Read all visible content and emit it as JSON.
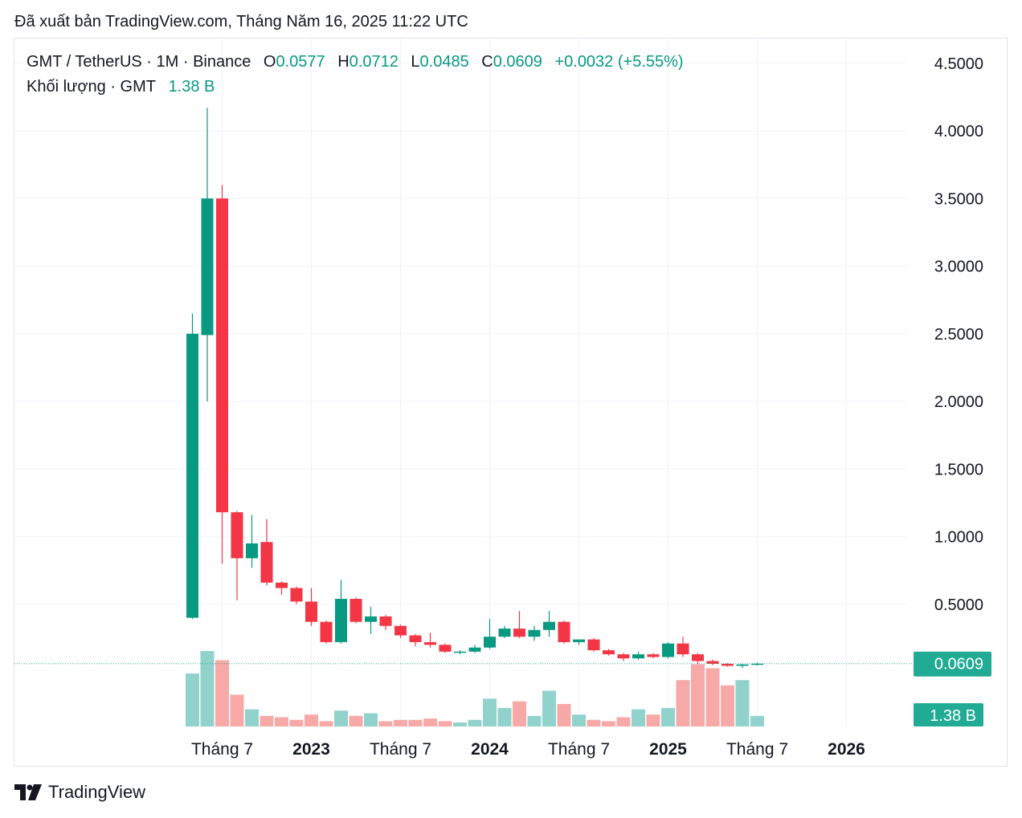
{
  "published_text": "Đã xuất bản TradingView.com, Tháng Năm 16, 2025 11:22 UTC",
  "legend": {
    "symbol": "GMT / TetherUS · 1M · Binance",
    "o_label": "O",
    "o_value": "0.0577",
    "h_label": "H",
    "h_value": "0.0712",
    "l_label": "L",
    "l_value": "0.0485",
    "c_label": "C",
    "c_value": "0.0609",
    "change": "+0.0032 (+5.55%)",
    "volume_label": "Khối lượng · GMT",
    "volume_value": "1.38 B"
  },
  "brand": {
    "name": "TradingView",
    "logo_icon": "tradingview-logo-icon"
  },
  "colors": {
    "up": "#089981",
    "down": "#f23645",
    "up_volume": "#92d2cc",
    "down_volume": "#f7a9a7",
    "last_price_label": "#22ab94",
    "grid": "#f0f3fa",
    "text": "#131722"
  },
  "chart_data": {
    "type": "candlestick",
    "interval": "1M",
    "y_axis": {
      "min": 0,
      "max": 4.5,
      "ticks": [
        "4.5000",
        "4.0000",
        "3.5000",
        "3.0000",
        "2.5000",
        "2.0000",
        "1.5000",
        "1.0000",
        "0.5000"
      ],
      "tick_values": [
        4.5,
        4.0,
        3.5,
        3.0,
        2.5,
        2.0,
        1.5,
        1.0,
        0.5
      ]
    },
    "x_axis": {
      "labels": [
        {
          "text": "Tháng 7",
          "bold": false,
          "index": 2
        },
        {
          "text": "2023",
          "bold": true,
          "index": 8
        },
        {
          "text": "Tháng 7",
          "bold": false,
          "index": 14
        },
        {
          "text": "2024",
          "bold": true,
          "index": 20
        },
        {
          "text": "Tháng 7",
          "bold": false,
          "index": 26
        },
        {
          "text": "2025",
          "bold": true,
          "index": 32
        },
        {
          "text": "Tháng 7",
          "bold": false,
          "index": 38
        },
        {
          "text": "2026",
          "bold": true,
          "index": 44
        }
      ]
    },
    "grid": true,
    "last_price": {
      "value": 0.0609,
      "label": "0.0609"
    },
    "last_volume_label": "1.38 B",
    "candles": [
      {
        "o": 0.4,
        "h": 2.65,
        "l": 0.39,
        "c": 2.5,
        "v": 0.4
      },
      {
        "o": 2.49,
        "h": 4.17,
        "l": 2.0,
        "c": 3.5,
        "v": 0.57
      },
      {
        "o": 3.5,
        "h": 3.6,
        "l": 0.8,
        "c": 1.18,
        "v": 0.5
      },
      {
        "o": 1.18,
        "h": 1.19,
        "l": 0.53,
        "c": 0.84,
        "v": 0.24
      },
      {
        "o": 0.84,
        "h": 1.16,
        "l": 0.77,
        "c": 0.95,
        "v": 0.13
      },
      {
        "o": 0.96,
        "h": 1.13,
        "l": 0.64,
        "c": 0.66,
        "v": 0.08
      },
      {
        "o": 0.66,
        "h": 0.67,
        "l": 0.57,
        "c": 0.62,
        "v": 0.07
      },
      {
        "o": 0.62,
        "h": 0.63,
        "l": 0.5,
        "c": 0.52,
        "v": 0.05
      },
      {
        "o": 0.52,
        "h": 0.62,
        "l": 0.34,
        "c": 0.37,
        "v": 0.09
      },
      {
        "o": 0.37,
        "h": 0.38,
        "l": 0.21,
        "c": 0.22,
        "v": 0.04
      },
      {
        "o": 0.22,
        "h": 0.68,
        "l": 0.21,
        "c": 0.54,
        "v": 0.12
      },
      {
        "o": 0.54,
        "h": 0.55,
        "l": 0.36,
        "c": 0.37,
        "v": 0.08
      },
      {
        "o": 0.37,
        "h": 0.48,
        "l": 0.28,
        "c": 0.41,
        "v": 0.1
      },
      {
        "o": 0.41,
        "h": 0.42,
        "l": 0.31,
        "c": 0.34,
        "v": 0.04
      },
      {
        "o": 0.34,
        "h": 0.35,
        "l": 0.25,
        "c": 0.27,
        "v": 0.05
      },
      {
        "o": 0.27,
        "h": 0.28,
        "l": 0.19,
        "c": 0.22,
        "v": 0.05
      },
      {
        "o": 0.22,
        "h": 0.29,
        "l": 0.18,
        "c": 0.2,
        "v": 0.06
      },
      {
        "o": 0.2,
        "h": 0.21,
        "l": 0.14,
        "c": 0.15,
        "v": 0.04
      },
      {
        "o": 0.15,
        "h": 0.16,
        "l": 0.13,
        "c": 0.15,
        "v": 0.03
      },
      {
        "o": 0.15,
        "h": 0.2,
        "l": 0.14,
        "c": 0.18,
        "v": 0.05
      },
      {
        "o": 0.18,
        "h": 0.39,
        "l": 0.17,
        "c": 0.26,
        "v": 0.21
      },
      {
        "o": 0.26,
        "h": 0.34,
        "l": 0.25,
        "c": 0.32,
        "v": 0.14
      },
      {
        "o": 0.32,
        "h": 0.45,
        "l": 0.25,
        "c": 0.26,
        "v": 0.19
      },
      {
        "o": 0.26,
        "h": 0.34,
        "l": 0.23,
        "c": 0.31,
        "v": 0.08
      },
      {
        "o": 0.31,
        "h": 0.45,
        "l": 0.26,
        "c": 0.37,
        "v": 0.27
      },
      {
        "o": 0.37,
        "h": 0.38,
        "l": 0.21,
        "c": 0.22,
        "v": 0.17
      },
      {
        "o": 0.22,
        "h": 0.24,
        "l": 0.2,
        "c": 0.24,
        "v": 0.09
      },
      {
        "o": 0.24,
        "h": 0.25,
        "l": 0.15,
        "c": 0.16,
        "v": 0.05
      },
      {
        "o": 0.16,
        "h": 0.17,
        "l": 0.12,
        "c": 0.13,
        "v": 0.04
      },
      {
        "o": 0.13,
        "h": 0.14,
        "l": 0.08,
        "c": 0.1,
        "v": 0.07
      },
      {
        "o": 0.1,
        "h": 0.15,
        "l": 0.09,
        "c": 0.13,
        "v": 0.13
      },
      {
        "o": 0.13,
        "h": 0.14,
        "l": 0.1,
        "c": 0.11,
        "v": 0.09
      },
      {
        "o": 0.11,
        "h": 0.22,
        "l": 0.1,
        "c": 0.21,
        "v": 0.14
      },
      {
        "o": 0.21,
        "h": 0.26,
        "l": 0.11,
        "c": 0.13,
        "v": 0.35
      },
      {
        "o": 0.13,
        "h": 0.14,
        "l": 0.06,
        "c": 0.08,
        "v": 0.47
      },
      {
        "o": 0.08,
        "h": 0.09,
        "l": 0.05,
        "c": 0.06,
        "v": 0.44
      },
      {
        "o": 0.06,
        "h": 0.065,
        "l": 0.04,
        "c": 0.045,
        "v": 0.31
      },
      {
        "o": 0.045,
        "h": 0.06,
        "l": 0.03,
        "c": 0.055,
        "v": 0.35
      },
      {
        "o": 0.0577,
        "h": 0.0712,
        "l": 0.0485,
        "c": 0.0609,
        "v": 0.08
      }
    ]
  }
}
